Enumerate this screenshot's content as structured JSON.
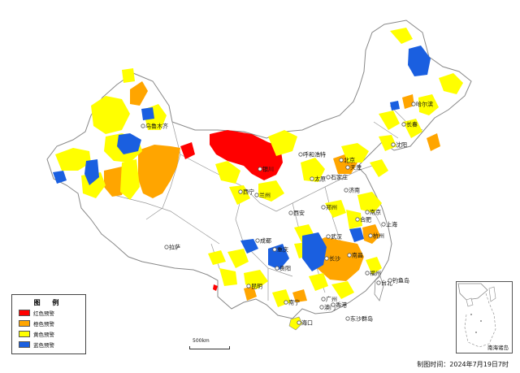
{
  "map": {
    "cities": [
      {
        "key": "wulumuqi",
        "name": "乌鲁木齐"
      },
      {
        "key": "huhehaote",
        "name": "呼和浩特"
      },
      {
        "key": "yinchuan",
        "name": "银川"
      },
      {
        "key": "xining",
        "name": "西宁"
      },
      {
        "key": "lanzhou",
        "name": "兰州"
      },
      {
        "key": "lasa",
        "name": "拉萨"
      },
      {
        "key": "xian",
        "name": "西安"
      },
      {
        "key": "chengdu",
        "name": "成都"
      },
      {
        "key": "zhengzhou",
        "name": "郑州"
      },
      {
        "key": "taiyuan",
        "name": "太原"
      },
      {
        "key": "shijiazhuang",
        "name": "石家庄"
      },
      {
        "key": "beijing",
        "name": "北京"
      },
      {
        "key": "tianjin",
        "name": "天津"
      },
      {
        "key": "jinan",
        "name": "济南"
      },
      {
        "key": "shenyang",
        "name": "沈阳"
      },
      {
        "key": "changchun",
        "name": "长春"
      },
      {
        "key": "haerbin",
        "name": "哈尔滨"
      },
      {
        "key": "hefei",
        "name": "合肥"
      },
      {
        "key": "nanjing",
        "name": "南京"
      },
      {
        "key": "shanghai",
        "name": "上海"
      },
      {
        "key": "hangzhou",
        "name": "杭州"
      },
      {
        "key": "wuhan",
        "name": "武汉"
      },
      {
        "key": "changsha",
        "name": "长沙"
      },
      {
        "key": "nanchang",
        "name": "南昌"
      },
      {
        "key": "fuzhou",
        "name": "福州"
      },
      {
        "key": "taibei",
        "name": "台北"
      },
      {
        "key": "guangzhou",
        "name": "广州"
      },
      {
        "key": "aomen",
        "name": "澳门"
      },
      {
        "key": "xianggang",
        "name": "香港"
      },
      {
        "key": "nanning",
        "name": "南宁"
      },
      {
        "key": "haikou",
        "name": "海口"
      },
      {
        "key": "kunming",
        "name": "昆明"
      },
      {
        "key": "guiyang",
        "name": "贵阳"
      },
      {
        "key": "chongqing",
        "name": "重庆"
      },
      {
        "key": "diaoyudao",
        "name": "钓鱼岛"
      },
      {
        "key": "dongshaqundao",
        "name": "东沙群岛"
      }
    ]
  },
  "legend": {
    "title": "图 例",
    "items": [
      {
        "label": "红色预警",
        "color": "#ff0000"
      },
      {
        "label": "橙色预警",
        "color": "#ffa500"
      },
      {
        "label": "黄色预警",
        "color": "#ffff00"
      },
      {
        "label": "蓝色预警",
        "color": "#1a5fe0"
      }
    ]
  },
  "inset": {
    "label": "南海诸岛"
  },
  "scalebar": {
    "label": "500km"
  },
  "footer": {
    "text": "制图时间：2024年7月19日7时"
  }
}
